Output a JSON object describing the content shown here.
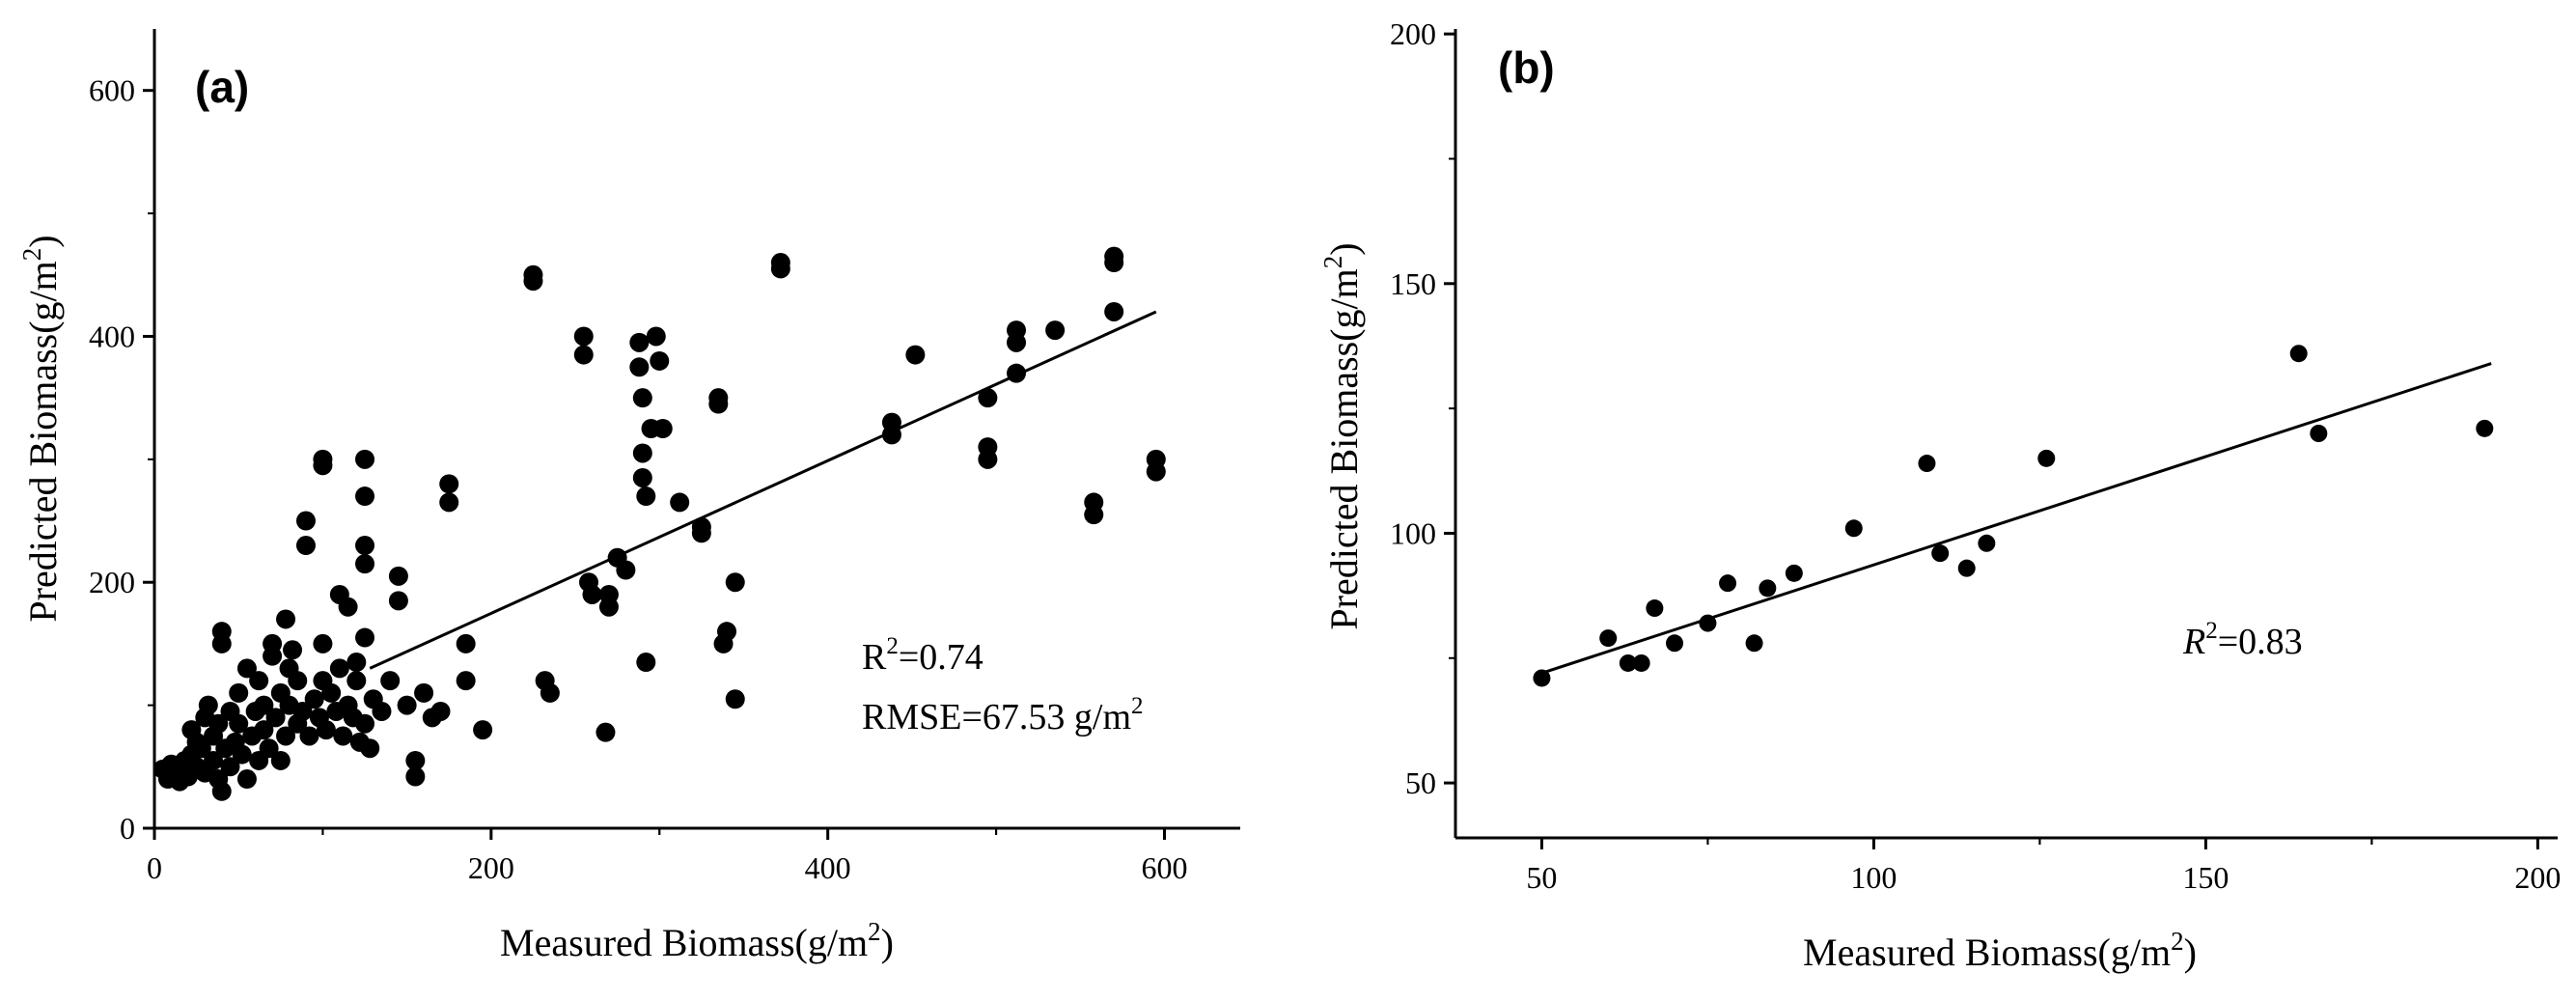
{
  "chart_data": [
    {
      "type": "scatter",
      "panel_label": "(a)",
      "xlabel_text": "Measured Biomass(g/m",
      "xlabel_sup": "2",
      "xlabel_end": ")",
      "ylabel_text": "Predicted Biomass(g/m",
      "ylabel_sup": "2",
      "ylabel_end": ")",
      "xlim": [
        0,
        645
      ],
      "ylim": [
        0,
        650
      ],
      "xticks": [
        0,
        200,
        400,
        600
      ],
      "yticks": [
        0,
        200,
        400,
        600
      ],
      "grid": false,
      "r2_text_pre": "R",
      "r2_sup": "2",
      "r2_text_post": "=0.74",
      "rmse_text_pre": "RMSE=67.53 g/m",
      "rmse_sup": "2",
      "fit_line": [
        [
          128,
          130
        ],
        [
          595,
          420
        ]
      ],
      "points": [
        [
          5,
          48
        ],
        [
          8,
          40
        ],
        [
          10,
          52
        ],
        [
          12,
          45
        ],
        [
          15,
          38
        ],
        [
          18,
          55
        ],
        [
          20,
          42
        ],
        [
          22,
          60
        ],
        [
          22,
          80
        ],
        [
          25,
          50
        ],
        [
          25,
          70
        ],
        [
          28,
          65
        ],
        [
          30,
          45
        ],
        [
          30,
          90
        ],
        [
          32,
          100
        ],
        [
          35,
          55
        ],
        [
          35,
          75
        ],
        [
          38,
          40
        ],
        [
          38,
          85
        ],
        [
          40,
          30
        ],
        [
          40,
          150
        ],
        [
          40,
          160
        ],
        [
          42,
          65
        ],
        [
          45,
          50
        ],
        [
          45,
          95
        ],
        [
          48,
          70
        ],
        [
          50,
          85
        ],
        [
          50,
          110
        ],
        [
          52,
          60
        ],
        [
          55,
          40
        ],
        [
          55,
          130
        ],
        [
          58,
          75
        ],
        [
          60,
          95
        ],
        [
          62,
          55
        ],
        [
          62,
          120
        ],
        [
          65,
          80
        ],
        [
          65,
          100
        ],
        [
          68,
          65
        ],
        [
          70,
          140
        ],
        [
          70,
          150
        ],
        [
          72,
          90
        ],
        [
          75,
          55
        ],
        [
          75,
          110
        ],
        [
          78,
          170
        ],
        [
          78,
          75
        ],
        [
          80,
          100
        ],
        [
          80,
          130
        ],
        [
          82,
          145
        ],
        [
          85,
          85
        ],
        [
          85,
          120
        ],
        [
          88,
          95
        ],
        [
          90,
          230
        ],
        [
          90,
          250
        ],
        [
          92,
          75
        ],
        [
          95,
          105
        ],
        [
          98,
          90
        ],
        [
          100,
          150
        ],
        [
          100,
          120
        ],
        [
          100,
          295
        ],
        [
          100,
          300
        ],
        [
          102,
          80
        ],
        [
          105,
          110
        ],
        [
          108,
          95
        ],
        [
          110,
          190
        ],
        [
          110,
          130
        ],
        [
          112,
          75
        ],
        [
          115,
          180
        ],
        [
          115,
          100
        ],
        [
          118,
          90
        ],
        [
          120,
          135
        ],
        [
          120,
          120
        ],
        [
          122,
          70
        ],
        [
          125,
          270
        ],
        [
          125,
          300
        ],
        [
          125,
          230
        ],
        [
          125,
          215
        ],
        [
          125,
          155
        ],
        [
          125,
          85
        ],
        [
          128,
          65
        ],
        [
          130,
          105
        ],
        [
          135,
          95
        ],
        [
          140,
          120
        ],
        [
          145,
          205
        ],
        [
          145,
          185
        ],
        [
          150,
          100
        ],
        [
          155,
          55
        ],
        [
          155,
          42
        ],
        [
          160,
          110
        ],
        [
          165,
          90
        ],
        [
          170,
          95
        ],
        [
          175,
          280
        ],
        [
          175,
          265
        ],
        [
          185,
          150
        ],
        [
          185,
          120
        ],
        [
          195,
          80
        ],
        [
          225,
          450
        ],
        [
          225,
          445
        ],
        [
          232,
          120
        ],
        [
          235,
          110
        ],
        [
          255,
          400
        ],
        [
          255,
          385
        ],
        [
          258,
          200
        ],
        [
          260,
          190
        ],
        [
          268,
          78
        ],
        [
          270,
          190
        ],
        [
          270,
          180
        ],
        [
          275,
          220
        ],
        [
          280,
          210
        ],
        [
          288,
          395
        ],
        [
          288,
          375
        ],
        [
          290,
          350
        ],
        [
          290,
          305
        ],
        [
          290,
          285
        ],
        [
          292,
          270
        ],
        [
          292,
          135
        ],
        [
          295,
          325
        ],
        [
          298,
          400
        ],
        [
          300,
          380
        ],
        [
          302,
          325
        ],
        [
          312,
          265
        ],
        [
          325,
          245
        ],
        [
          325,
          240
        ],
        [
          335,
          350
        ],
        [
          335,
          345
        ],
        [
          338,
          150
        ],
        [
          340,
          160
        ],
        [
          345,
          105
        ],
        [
          345,
          200
        ],
        [
          372,
          460
        ],
        [
          372,
          455
        ],
        [
          438,
          330
        ],
        [
          438,
          320
        ],
        [
          452,
          385
        ],
        [
          495,
          350
        ],
        [
          495,
          310
        ],
        [
          495,
          300
        ],
        [
          512,
          405
        ],
        [
          512,
          395
        ],
        [
          512,
          370
        ],
        [
          535,
          405
        ],
        [
          558,
          265
        ],
        [
          558,
          255
        ],
        [
          570,
          465
        ],
        [
          570,
          460
        ],
        [
          570,
          420
        ],
        [
          595,
          300
        ],
        [
          595,
          290
        ]
      ]
    },
    {
      "type": "scatter",
      "panel_label": "(b)",
      "xlabel_text": "Measured Biomass(g/m",
      "xlabel_sup": "2",
      "xlabel_end": ")",
      "ylabel_text": "Predicted Biomass(g/m",
      "ylabel_sup": "2",
      "ylabel_end": ")",
      "xlim": [
        37,
        203
      ],
      "ylim": [
        39,
        201
      ],
      "xticks": [
        50,
        100,
        150,
        200
      ],
      "yticks": [
        50,
        100,
        150,
        200
      ],
      "grid": false,
      "r2_text_pre": "R",
      "r2_sup": "2",
      "r2_text_post": "=0.83",
      "fit_line": [
        [
          50,
          72
        ],
        [
          193,
          134
        ]
      ],
      "points": [
        [
          50,
          71
        ],
        [
          60,
          79
        ],
        [
          63,
          74
        ],
        [
          65,
          74
        ],
        [
          67,
          85
        ],
        [
          70,
          78
        ],
        [
          75,
          82
        ],
        [
          78,
          90
        ],
        [
          82,
          78
        ],
        [
          84,
          89
        ],
        [
          88,
          92
        ],
        [
          97,
          101
        ],
        [
          108,
          114
        ],
        [
          110,
          96
        ],
        [
          114,
          93
        ],
        [
          117,
          98
        ],
        [
          126,
          115
        ],
        [
          164,
          136
        ],
        [
          167,
          120
        ],
        [
          192,
          121
        ]
      ]
    }
  ]
}
